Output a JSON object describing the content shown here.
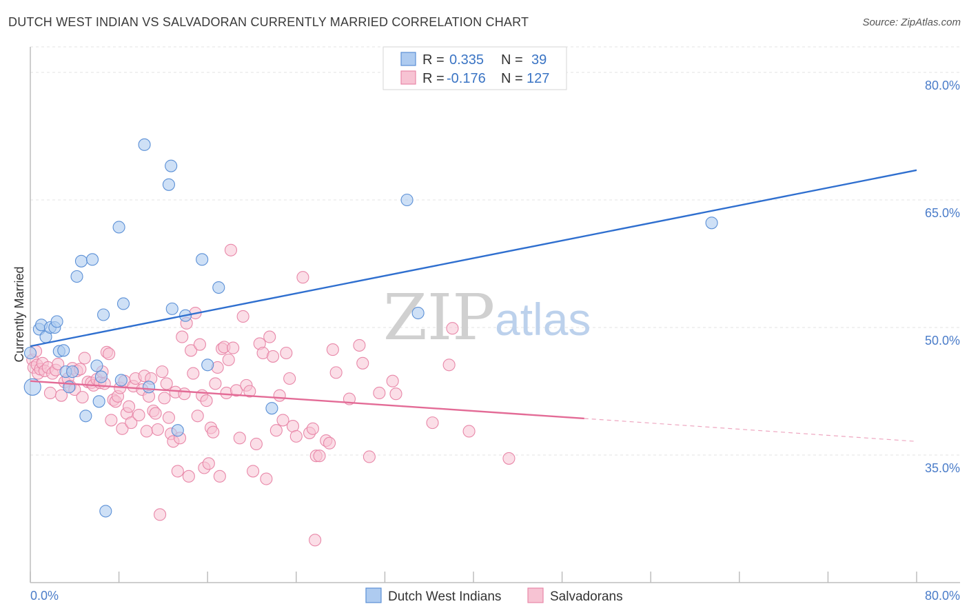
{
  "title": "DUTCH WEST INDIAN VS SALVADORAN CURRENTLY MARRIED CORRELATION CHART",
  "source": "Source: ZipAtlas.com",
  "watermark": {
    "zip": "ZIP",
    "atlas": "atlas"
  },
  "legend": {
    "r_label": "R =",
    "n_label": "N =",
    "rows": [
      {
        "r": "0.335",
        "n": "39"
      },
      {
        "r": "-0.176",
        "n": "127"
      }
    ]
  },
  "colors": {
    "blue_fill": "#aecbf0",
    "blue_stroke": "#5a8fd6",
    "blue_line": "#2f6fcf",
    "pink_fill": "#f7c3d3",
    "pink_stroke": "#e887a8",
    "pink_line": "#e36b96",
    "tick_label": "#4a7cc9",
    "grid": "#e3e3e3"
  },
  "chart_data": {
    "type": "scatter",
    "title": "DUTCH WEST INDIAN VS SALVADORAN CURRENTLY MARRIED CORRELATION CHART",
    "xlabel": "",
    "ylabel": "Currently Married",
    "xlim": [
      0,
      80
    ],
    "ylim": [
      20,
      83
    ],
    "x_tick_labels": [
      "0.0%",
      "80.0%"
    ],
    "y_ticks": [
      35,
      50,
      65,
      80
    ],
    "y_tick_labels": [
      "35.0%",
      "50.0%",
      "65.0%",
      "80.0%"
    ],
    "grid": "horizontal dashed",
    "legend_position": "bottom",
    "series": [
      {
        "name": "Dutch West Indians",
        "color": "#5a8fd6",
        "points": [
          [
            0.2,
            43.0
          ],
          [
            0.8,
            49.8
          ],
          [
            1.0,
            50.3
          ],
          [
            1.4,
            48.9
          ],
          [
            1.8,
            50.0
          ],
          [
            2.2,
            50.0
          ],
          [
            2.4,
            50.7
          ],
          [
            2.6,
            47.2
          ],
          [
            3.0,
            47.3
          ],
          [
            3.2,
            44.8
          ],
          [
            3.5,
            43.0
          ],
          [
            3.8,
            44.8
          ],
          [
            4.2,
            56.0
          ],
          [
            4.6,
            57.8
          ],
          [
            5.0,
            39.6
          ],
          [
            5.6,
            58.0
          ],
          [
            6.0,
            45.5
          ],
          [
            6.2,
            41.3
          ],
          [
            6.4,
            44.2
          ],
          [
            6.6,
            51.5
          ],
          [
            6.8,
            28.4
          ],
          [
            8.0,
            61.8
          ],
          [
            8.2,
            43.8
          ],
          [
            8.4,
            52.8
          ],
          [
            10.3,
            71.5
          ],
          [
            10.7,
            43.0
          ],
          [
            12.5,
            66.8
          ],
          [
            12.7,
            69.0
          ],
          [
            12.8,
            52.2
          ],
          [
            13.3,
            37.9
          ],
          [
            14.0,
            51.4
          ],
          [
            15.5,
            58.0
          ],
          [
            16.0,
            45.6
          ],
          [
            17.0,
            54.7
          ],
          [
            21.8,
            40.5
          ],
          [
            34.0,
            65.0
          ],
          [
            35.0,
            51.7
          ],
          [
            61.5,
            62.3
          ],
          [
            0.0,
            47.0
          ]
        ]
      },
      {
        "name": "Salvadorans",
        "color": "#e887a8",
        "points": [
          [
            0.2,
            46.2
          ],
          [
            0.3,
            45.3
          ],
          [
            0.5,
            47.2
          ],
          [
            0.6,
            45.6
          ],
          [
            0.7,
            44.6
          ],
          [
            0.9,
            45.1
          ],
          [
            1.1,
            45.8
          ],
          [
            1.3,
            44.9
          ],
          [
            1.6,
            45.3
          ],
          [
            1.8,
            42.3
          ],
          [
            2.0,
            44.6
          ],
          [
            2.3,
            45.0
          ],
          [
            2.5,
            45.7
          ],
          [
            2.8,
            42.0
          ],
          [
            3.1,
            43.6
          ],
          [
            3.4,
            44.0
          ],
          [
            3.6,
            43.1
          ],
          [
            3.8,
            45.2
          ],
          [
            4.0,
            42.7
          ],
          [
            4.2,
            44.9
          ],
          [
            4.5,
            45.1
          ],
          [
            4.7,
            41.8
          ],
          [
            4.9,
            46.4
          ],
          [
            5.2,
            43.6
          ],
          [
            5.5,
            43.5
          ],
          [
            5.7,
            43.2
          ],
          [
            6.0,
            43.9
          ],
          [
            6.3,
            43.5
          ],
          [
            6.5,
            44.8
          ],
          [
            6.7,
            43.4
          ],
          [
            6.9,
            47.1
          ],
          [
            7.1,
            46.9
          ],
          [
            7.3,
            39.1
          ],
          [
            7.5,
            41.5
          ],
          [
            7.7,
            41.3
          ],
          [
            7.9,
            41.9
          ],
          [
            8.1,
            42.9
          ],
          [
            8.3,
            38.1
          ],
          [
            8.5,
            43.7
          ],
          [
            8.7,
            39.9
          ],
          [
            8.9,
            40.7
          ],
          [
            9.1,
            38.8
          ],
          [
            9.3,
            43.1
          ],
          [
            9.5,
            44.0
          ],
          [
            9.8,
            39.7
          ],
          [
            10.1,
            42.7
          ],
          [
            10.3,
            44.3
          ],
          [
            10.5,
            37.8
          ],
          [
            10.7,
            41.9
          ],
          [
            10.9,
            44.0
          ],
          [
            11.1,
            40.2
          ],
          [
            11.3,
            39.9
          ],
          [
            11.5,
            38.0
          ],
          [
            11.7,
            28.0
          ],
          [
            11.9,
            44.8
          ],
          [
            12.1,
            41.7
          ],
          [
            12.3,
            43.4
          ],
          [
            12.5,
            39.4
          ],
          [
            12.7,
            37.5
          ],
          [
            12.9,
            36.6
          ],
          [
            13.1,
            42.4
          ],
          [
            13.3,
            33.1
          ],
          [
            13.5,
            37.0
          ],
          [
            13.7,
            48.9
          ],
          [
            13.9,
            42.2
          ],
          [
            14.1,
            50.5
          ],
          [
            14.3,
            32.5
          ],
          [
            14.5,
            47.3
          ],
          [
            14.7,
            44.6
          ],
          [
            14.9,
            51.7
          ],
          [
            15.1,
            39.6
          ],
          [
            15.3,
            48.0
          ],
          [
            15.5,
            42.0
          ],
          [
            15.7,
            33.5
          ],
          [
            15.9,
            41.4
          ],
          [
            16.1,
            34.0
          ],
          [
            16.3,
            38.2
          ],
          [
            16.5,
            37.7
          ],
          [
            16.7,
            43.4
          ],
          [
            16.9,
            45.3
          ],
          [
            17.1,
            32.5
          ],
          [
            17.3,
            47.5
          ],
          [
            17.5,
            47.7
          ],
          [
            17.7,
            42.3
          ],
          [
            17.9,
            46.2
          ],
          [
            18.1,
            59.1
          ],
          [
            18.3,
            47.6
          ],
          [
            18.6,
            42.6
          ],
          [
            18.9,
            37.0
          ],
          [
            19.2,
            51.3
          ],
          [
            19.5,
            43.2
          ],
          [
            19.8,
            42.5
          ],
          [
            20.1,
            33.1
          ],
          [
            20.4,
            36.3
          ],
          [
            20.7,
            48.1
          ],
          [
            21.0,
            47.0
          ],
          [
            21.3,
            32.2
          ],
          [
            21.6,
            48.9
          ],
          [
            21.9,
            46.6
          ],
          [
            22.2,
            37.9
          ],
          [
            22.5,
            42.0
          ],
          [
            22.8,
            39.1
          ],
          [
            23.1,
            47.0
          ],
          [
            23.4,
            44.0
          ],
          [
            23.7,
            38.4
          ],
          [
            24.0,
            37.2
          ],
          [
            24.6,
            55.9
          ],
          [
            25.2,
            37.6
          ],
          [
            25.5,
            38.1
          ],
          [
            25.8,
            34.9
          ],
          [
            26.1,
            34.9
          ],
          [
            26.7,
            36.7
          ],
          [
            27.0,
            36.4
          ],
          [
            27.3,
            47.4
          ],
          [
            27.6,
            44.7
          ],
          [
            28.8,
            41.6
          ],
          [
            29.7,
            47.9
          ],
          [
            30.0,
            45.8
          ],
          [
            30.6,
            34.8
          ],
          [
            31.5,
            42.3
          ],
          [
            32.7,
            43.7
          ],
          [
            33.0,
            42.2
          ],
          [
            36.3,
            38.8
          ],
          [
            37.8,
            45.6
          ],
          [
            38.1,
            49.9
          ],
          [
            39.6,
            37.8
          ],
          [
            43.2,
            34.6
          ],
          [
            25.7,
            25.0
          ]
        ]
      }
    ],
    "trend_lines": [
      {
        "series": "Dutch West Indians",
        "x": [
          0,
          80
        ],
        "y": [
          47.8,
          68.5
        ],
        "style": "solid"
      },
      {
        "series": "Salvadorans",
        "x": [
          0,
          50
        ],
        "y": [
          43.7,
          39.3
        ],
        "style": "solid"
      },
      {
        "series": "Salvadorans",
        "x": [
          50,
          80
        ],
        "y": [
          39.3,
          36.6
        ],
        "style": "dashed"
      }
    ]
  },
  "x_axis": {
    "min_label": "0.0%",
    "max_label": "80.0%"
  },
  "bottom_legend": [
    {
      "label": "Dutch West Indians"
    },
    {
      "label": "Salvadorans"
    }
  ]
}
